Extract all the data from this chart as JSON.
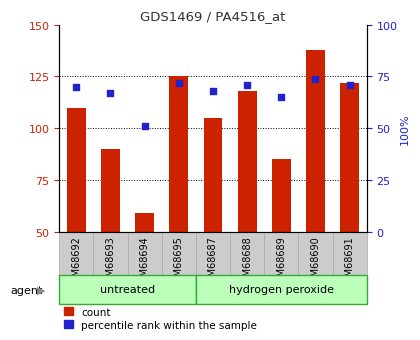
{
  "title": "GDS1469 / PA4516_at",
  "samples": [
    "GSM68692",
    "GSM68693",
    "GSM68694",
    "GSM68695",
    "GSM68687",
    "GSM68688",
    "GSM68689",
    "GSM68690",
    "GSM68691"
  ],
  "counts": [
    110,
    90,
    59,
    125,
    105,
    118,
    85,
    138,
    122
  ],
  "percentile_ranks": [
    70,
    67,
    51,
    72,
    68,
    71,
    65,
    74,
    71
  ],
  "groups": [
    {
      "label": "untreated",
      "start": 0,
      "end": 4
    },
    {
      "label": "hydrogen peroxide",
      "start": 4,
      "end": 9
    }
  ],
  "ylim_left": [
    50,
    150
  ],
  "ylim_right": [
    0,
    100
  ],
  "yticks_left": [
    50,
    75,
    100,
    125,
    150
  ],
  "yticks_right": [
    0,
    25,
    50,
    75,
    100
  ],
  "bar_color": "#cc2200",
  "dot_color": "#2222cc",
  "bar_bottom": 50,
  "group_bg_light": "#bbffbb",
  "group_bg_dark": "#44cc44",
  "group_border_color": "#33aa33",
  "sample_bg_color": "#cccccc",
  "sample_border_color": "#aaaaaa",
  "grid_color": "#000000",
  "legend_items": [
    "count",
    "percentile rank within the sample"
  ],
  "agent_label": "agent",
  "ylabel_left_color": "#cc2200",
  "ylabel_right_color": "#2222cc",
  "title_color": "#333333",
  "figsize": [
    4.1,
    3.45
  ],
  "dpi": 100
}
